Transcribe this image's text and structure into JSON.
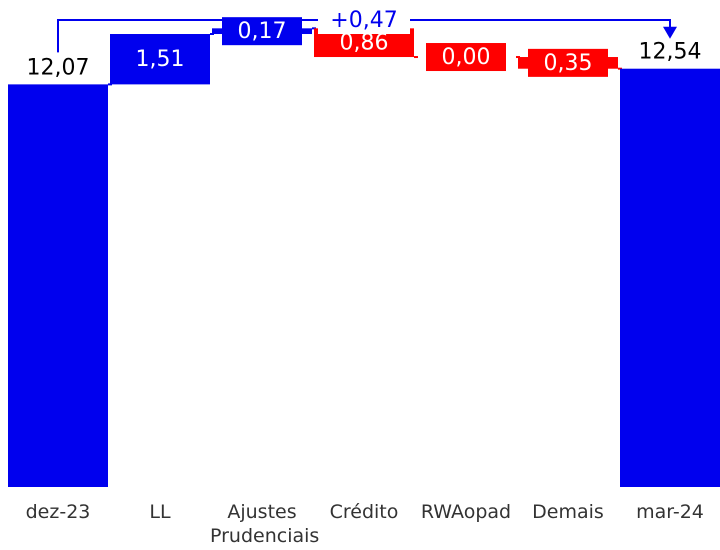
{
  "chart_data": {
    "type": "waterfall",
    "categories": [
      "dez-23",
      "LL",
      "Ajustes Prudenciais",
      "Crédito",
      "RWAopad",
      "Demais",
      "mar-24"
    ],
    "measure": [
      "absolute",
      "relative",
      "relative",
      "relative",
      "relative",
      "relative",
      "total"
    ],
    "values": [
      12.07,
      1.51,
      0.17,
      -0.86,
      0.0,
      -0.35,
      12.54
    ],
    "value_labels": [
      "12,07",
      "1,51",
      "0,17",
      "0,86",
      "0,00",
      "0,35",
      "12,54"
    ],
    "colors": [
      "#0000ee",
      "#0000ee",
      "#0000ee",
      "#ff0000",
      "#ff0000",
      "#ff0000",
      "#0000ee"
    ],
    "ylim": [
      0,
      14
    ],
    "annotation": "+0,47"
  }
}
